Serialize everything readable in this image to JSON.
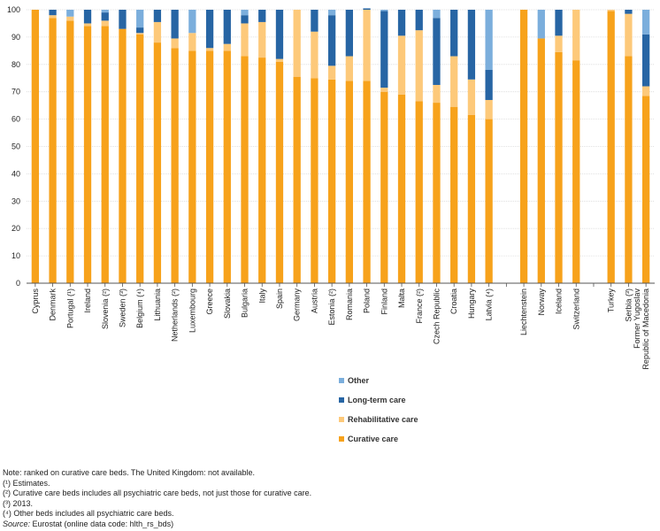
{
  "chart_data": {
    "type": "bar",
    "stacked": true,
    "ylim": [
      0,
      100
    ],
    "yticks": [
      0,
      10,
      20,
      30,
      40,
      50,
      60,
      70,
      80,
      90,
      100
    ],
    "grid": true,
    "categories": [
      "Cyprus",
      "Denmark",
      "Portugal (¹)",
      "Ireland",
      "Slovenia (²)",
      "Sweden (³)",
      "Belgium (⁴)",
      "Lithuania",
      "Netherlands (²)",
      "Luxembourg",
      "Greece",
      "Slovakia",
      "Bulgaria",
      "Italy",
      "Spain",
      "Germany",
      "Austria",
      "Estonia (²)",
      "Romania",
      "Poland",
      "Finland",
      "Malta",
      "France (²)",
      "Czech Republic",
      "Croatia",
      "Hungary",
      "Latvia (⁴)",
      "",
      "Liechtenstein",
      "Norway",
      "Iceland",
      "Switzerland",
      "",
      "Turkey",
      "Serbia (³)",
      "Former Yugoslav Republic of Macedonia"
    ],
    "series": [
      {
        "name": "Curative care",
        "color": "#F7A21B",
        "values": [
          100,
          97,
          96,
          94,
          94,
          93,
          91,
          88,
          86,
          85,
          85,
          85,
          83,
          82.5,
          81,
          75.5,
          75,
          74.5,
          74,
          74,
          70,
          69,
          66.5,
          66,
          64.5,
          61.5,
          60,
          null,
          100,
          89.5,
          84.5,
          81.5,
          null,
          99.5,
          83,
          68.5
        ]
      },
      {
        "name": "Rehabilitative care",
        "color": "#FDC97A",
        "values": [
          0,
          1,
          1.5,
          1,
          2,
          0,
          0.5,
          7.5,
          3.5,
          6.5,
          1,
          2.5,
          12,
          13,
          1,
          24.5,
          17,
          5,
          9,
          26,
          1.5,
          21.5,
          26,
          6.5,
          18.5,
          13,
          7,
          null,
          0,
          0,
          6,
          18.5,
          null,
          0.5,
          15.5,
          3.5
        ]
      },
      {
        "name": "Long-term care",
        "color": "#2765A4",
        "values": [
          0,
          2,
          0,
          5,
          3,
          7,
          2,
          4.5,
          10.5,
          0,
          14,
          12.5,
          3,
          4.5,
          18,
          0,
          8,
          18.5,
          17,
          0.5,
          28,
          9.5,
          7.5,
          24.5,
          17,
          25.5,
          11,
          null,
          0,
          0,
          9.5,
          0,
          null,
          0,
          1.5,
          19
        ]
      },
      {
        "name": "Other",
        "color": "#7BAEDC",
        "values": [
          0,
          0,
          2.5,
          0,
          1,
          0,
          6.5,
          0,
          0,
          8.5,
          0,
          0,
          2,
          0,
          0,
          0,
          0,
          2,
          0,
          0,
          0.5,
          0,
          0,
          3,
          0,
          0,
          22,
          null,
          0,
          10.5,
          0,
          0,
          null,
          0,
          0,
          9
        ]
      }
    ],
    "legend_order": [
      "Other",
      "Long-term care",
      "Rehabilitative care",
      "Curative care"
    ],
    "legend_placement": "bottom-center"
  },
  "notes": [
    "Note: ranked on curative care beds. The United Kingdom: not available.",
    "(¹) Estimates.",
    "(²) Curative care beds includes all psychiatric care beds, not just those for curative care.",
    "(³) 2013.",
    "(⁴) Other beds includes all psychiatric care beds."
  ],
  "source": {
    "label": "Source:",
    "text": " Eurostat (online data code: hlth_rs_bds)"
  }
}
